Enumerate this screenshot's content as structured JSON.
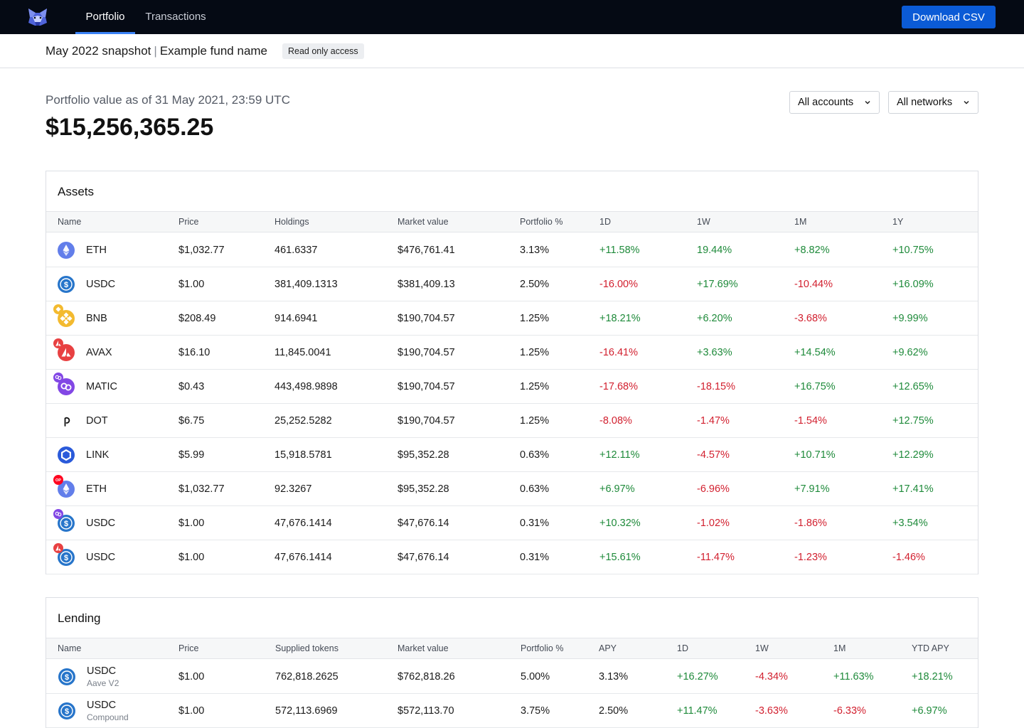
{
  "nav": {
    "tabs": [
      {
        "label": "Portfolio",
        "active": true
      },
      {
        "label": "Transactions",
        "active": false
      }
    ],
    "download_label": "Download CSV",
    "logo": "fox-logo-icon"
  },
  "subheader": {
    "snapshot": "May 2022 snapshot",
    "separator": "|",
    "fund": "Example fund name",
    "badge": "Read only access"
  },
  "portfolio": {
    "label": "Portfolio value as of 31 May 2021, 23:59 UTC",
    "value": "$15,256,365.25"
  },
  "filters": {
    "accounts": "All accounts",
    "networks": "All networks"
  },
  "assets": {
    "title": "Assets",
    "columns": [
      "Name",
      "Price",
      "Holdings",
      "Market value",
      "Portfolio %",
      "1D",
      "1W",
      "1M",
      "1Y"
    ],
    "rows": [
      {
        "icon": "eth",
        "network": "",
        "name": "ETH",
        "price": "$1,032.77",
        "holdings": "461.6337",
        "market_value": "$476,761.41",
        "portfolio": "3.13%",
        "d1": "+11.58%",
        "w1": "19.44%",
        "m1": "+8.82%",
        "y1": "+10.75%"
      },
      {
        "icon": "usdc",
        "network": "",
        "name": "USDC",
        "price": "$1.00",
        "holdings": "381,409.1313",
        "market_value": "$381,409.13",
        "portfolio": "2.50%",
        "d1": "-16.00%",
        "w1": "+17.69%",
        "m1": "-10.44%",
        "y1": "+16.09%"
      },
      {
        "icon": "bnb",
        "network": "bnb",
        "name": "BNB",
        "price": "$208.49",
        "holdings": "914.6941",
        "market_value": "$190,704.57",
        "portfolio": "1.25%",
        "d1": "+18.21%",
        "w1": "+6.20%",
        "m1": "-3.68%",
        "y1": "+9.99%"
      },
      {
        "icon": "avax",
        "network": "avax",
        "name": "AVAX",
        "price": "$16.10",
        "holdings": "11,845.0041",
        "market_value": "$190,704.57",
        "portfolio": "1.25%",
        "d1": "-16.41%",
        "w1": "+3.63%",
        "m1": "+14.54%",
        "y1": "+9.62%"
      },
      {
        "icon": "matic",
        "network": "matic",
        "name": "MATIC",
        "price": "$0.43",
        "holdings": "443,498.9898",
        "market_value": "$190,704.57",
        "portfolio": "1.25%",
        "d1": "-17.68%",
        "w1": "-18.15%",
        "m1": "+16.75%",
        "y1": "+12.65%"
      },
      {
        "icon": "dot",
        "network": "",
        "name": "DOT",
        "price": "$6.75",
        "holdings": "25,252.5282",
        "market_value": "$190,704.57",
        "portfolio": "1.25%",
        "d1": "-8.08%",
        "w1": "-1.47%",
        "m1": "-1.54%",
        "y1": "+12.75%"
      },
      {
        "icon": "link",
        "network": "",
        "name": "LINK",
        "price": "$5.99",
        "holdings": "15,918.5781",
        "market_value": "$95,352.28",
        "portfolio": "0.63%",
        "d1": "+12.11%",
        "w1": "-4.57%",
        "m1": "+10.71%",
        "y1": "+12.29%"
      },
      {
        "icon": "eth",
        "network": "op",
        "name": "ETH",
        "price": "$1,032.77",
        "holdings": "92.3267",
        "market_value": "$95,352.28",
        "portfolio": "0.63%",
        "d1": "+6.97%",
        "w1": "-6.96%",
        "m1": "+7.91%",
        "y1": "+17.41%"
      },
      {
        "icon": "usdc",
        "network": "matic",
        "name": "USDC",
        "price": "$1.00",
        "holdings": "47,676.1414",
        "market_value": "$47,676.14",
        "portfolio": "0.31%",
        "d1": "+10.32%",
        "w1": "-1.02%",
        "m1": "-1.86%",
        "y1": "+3.54%"
      },
      {
        "icon": "usdc",
        "network": "avax",
        "name": "USDC",
        "price": "$1.00",
        "holdings": "47,676.1414",
        "market_value": "$47,676.14",
        "portfolio": "0.31%",
        "d1": "+15.61%",
        "w1": "-11.47%",
        "m1": "-1.23%",
        "y1": "-1.46%"
      }
    ]
  },
  "lending": {
    "title": "Lending",
    "columns": [
      "Name",
      "Price",
      "Supplied tokens",
      "Market value",
      "Portfolio %",
      "APY",
      "1D",
      "1W",
      "1M",
      "YTD APY"
    ],
    "rows": [
      {
        "icon": "usdc",
        "name": "USDC",
        "protocol": "Aave V2",
        "price": "$1.00",
        "supplied": "762,818.2625",
        "market_value": "$762,818.26",
        "portfolio": "5.00%",
        "apy": "3.13%",
        "d1": "+16.27%",
        "w1": "-4.34%",
        "m1": "+11.63%",
        "ytd": "+18.21%"
      },
      {
        "icon": "usdc",
        "name": "USDC",
        "protocol": "Compound",
        "price": "$1.00",
        "supplied": "572,113.6969",
        "market_value": "$572,113.70",
        "portfolio": "3.75%",
        "apy": "2.50%",
        "d1": "+11.47%",
        "w1": "-3.63%",
        "m1": "-6.33%",
        "ytd": "+6.97%"
      }
    ]
  },
  "colors": {
    "topbar": "#050a14",
    "accent": "#0b5bd6",
    "positive": "#1e8a3a",
    "negative": "#d2202f"
  }
}
